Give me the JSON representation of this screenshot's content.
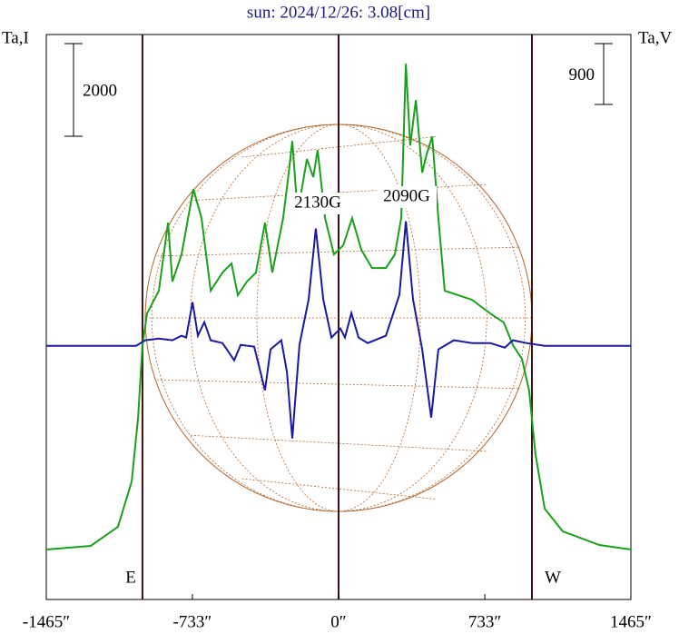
{
  "chart_data": {
    "type": "line",
    "title": "sun: 2024/12/26: 3.08[cm]",
    "y_label": "Ta,I",
    "y2_label": "Ta,V",
    "xlim": [
      -1465,
      1465
    ],
    "xticks": [
      {
        "value": -1465,
        "label": "-1465″"
      },
      {
        "value": -733,
        "label": "-733″"
      },
      {
        "value": 0,
        "label": "0″"
      },
      {
        "value": 733,
        "label": "733″"
      },
      {
        "value": 1465,
        "label": "1465″"
      }
    ],
    "ylim": [
      -1000,
      11200
    ],
    "y2lim": [
      -3750,
      4600
    ],
    "scale_bars": [
      {
        "value": 2000,
        "label": "2000",
        "axis": "y"
      },
      {
        "value": 900,
        "label": "900",
        "axis": "y2"
      }
    ],
    "limb_lines": [
      -983,
      0,
      969
    ],
    "annotations": [
      "2130G",
      "2090G",
      "E",
      "W"
    ],
    "series": [
      {
        "name": "I",
        "color": "#1aa01a",
        "x": [
          -1465,
          -1242,
          -1106,
          -1037,
          -1005,
          -983,
          -960,
          -901,
          -855,
          -833,
          -787,
          -728,
          -687,
          -641,
          -582,
          -537,
          -505,
          -460,
          -414,
          -369,
          -332,
          -278,
          -250,
          -232,
          -205,
          -159,
          -127,
          -105,
          -68,
          -23,
          23,
          68,
          114,
          168,
          237,
          282,
          314,
          337,
          359,
          387,
          419,
          441,
          469,
          500,
          532,
          601,
          669,
          760,
          828,
          874,
          919,
          955,
          987,
          1033,
          1124,
          1306,
          1465
        ],
        "values": [
          78,
          157,
          569,
          1549,
          2922,
          4490,
          5176,
          5667,
          7137,
          5863,
          6451,
          7863,
          7235,
          5667,
          6059,
          6255,
          5569,
          5863,
          6059,
          7137,
          6059,
          7235,
          8216,
          8902,
          7333,
          8510,
          8118,
          8706,
          7235,
          6451,
          6647,
          7235,
          6549,
          6157,
          6157,
          6451,
          7235,
          10569,
          8804,
          9784,
          8216,
          8608,
          9000,
          7235,
          5667,
          5569,
          5471,
          5176,
          4980,
          4490,
          4196,
          3510,
          2137,
          961,
          471,
          176,
          78
        ]
      },
      {
        "name": "V",
        "color": "#1a1aa0",
        "axis": "y2",
        "x": [
          -1465,
          -1015,
          -969,
          -901,
          -833,
          -787,
          -764,
          -732,
          -705,
          -673,
          -641,
          -582,
          -523,
          -491,
          -423,
          -369,
          -341,
          -287,
          -259,
          -232,
          -196,
          -150,
          -114,
          -77,
          -36,
          9,
          32,
          64,
          100,
          146,
          237,
          305,
          337,
          373,
          419,
          464,
          500,
          578,
          669,
          760,
          833,
          874,
          942,
          1033,
          1465
        ],
        "values": [
          0,
          0,
          81,
          107,
          81,
          148,
          121,
          645,
          148,
          349,
          81,
          40,
          -215,
          13,
          -13,
          -658,
          -54,
          81,
          -390,
          -1370,
          13,
          685,
          1733,
          685,
          121,
          255,
          121,
          484,
          121,
          40,
          148,
          752,
          1840,
          685,
          -54,
          -1061,
          -54,
          81,
          40,
          40,
          -27,
          81,
          40,
          0,
          0
        ]
      }
    ]
  }
}
